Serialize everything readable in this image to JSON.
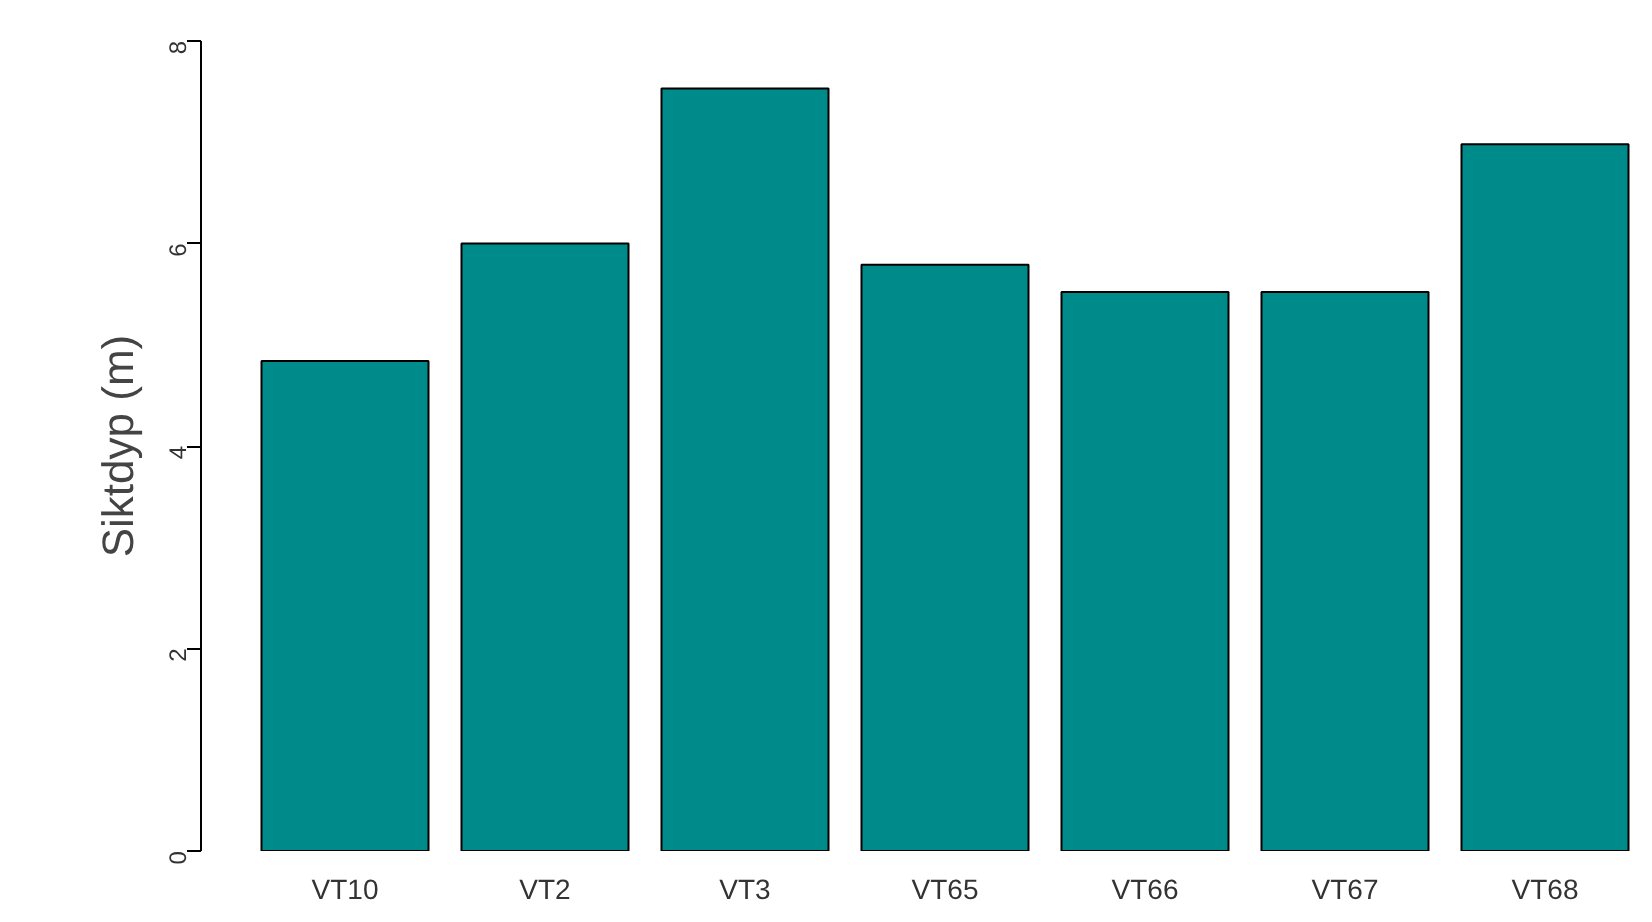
{
  "chart_data": {
    "type": "bar",
    "ylabel": "Siktdyp (m)",
    "categories": [
      "VT10",
      "VT2",
      "VT3",
      "VT65",
      "VT66",
      "VT67",
      "VT68"
    ],
    "values": [
      4.84,
      6.0,
      7.53,
      5.79,
      5.52,
      5.52,
      6.98
    ],
    "color": "#008b8b",
    "ylim": [
      0,
      8
    ],
    "yticks": [
      0,
      2,
      4,
      6,
      8
    ],
    "grid": false
  }
}
